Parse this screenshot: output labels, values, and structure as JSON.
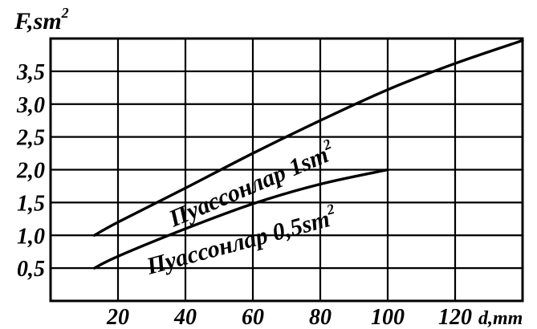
{
  "chart_data": {
    "type": "line",
    "ylabel": "F,sm",
    "ylabel_sup": "2",
    "xlabel": "d,mm",
    "xlim": [
      0,
      140
    ],
    "ylim": [
      0,
      4.0
    ],
    "x_ticks": [
      20,
      40,
      60,
      80,
      100,
      120
    ],
    "x_tick_labels": [
      "20",
      "40",
      "60",
      "80",
      "100",
      "120"
    ],
    "y_ticks": [
      0.5,
      1.0,
      1.5,
      2.0,
      2.5,
      3.0,
      3.5
    ],
    "y_tick_labels": [
      "0,5",
      "1,0",
      "1,5",
      "2,0",
      "2,5",
      "3,0",
      "3,5"
    ],
    "grid": true,
    "series": [
      {
        "name": "Пуассонлар 1sm",
        "name_sup": "2",
        "x": [
          13,
          20,
          40,
          60,
          80,
          100,
          120,
          140
        ],
        "y": [
          1.0,
          1.2,
          1.72,
          2.25,
          2.75,
          3.22,
          3.62,
          3.97
        ]
      },
      {
        "name": "Пуассонлар 0,5sm",
        "name_sup": "2",
        "x": [
          13,
          20,
          40,
          60,
          80,
          100
        ],
        "y": [
          0.5,
          0.68,
          1.1,
          1.48,
          1.78,
          2.0
        ]
      }
    ]
  }
}
